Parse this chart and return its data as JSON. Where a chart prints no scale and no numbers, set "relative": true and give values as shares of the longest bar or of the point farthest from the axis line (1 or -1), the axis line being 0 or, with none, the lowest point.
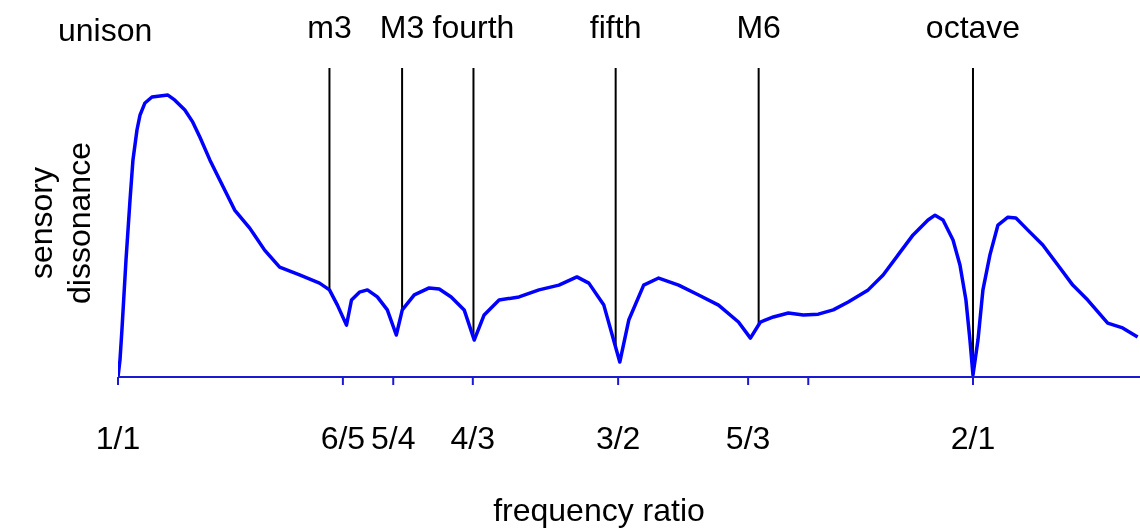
{
  "chart_data": {
    "type": "line",
    "xlabel": "frequency ratio",
    "ylabel": "sensory dissonance",
    "relative": true,
    "log": "x",
    "marker": "none",
    "line_style": "solid",
    "grid": false,
    "legend": false,
    "xlim": [
      1,
      2.29
    ],
    "xticks": [
      {
        "value": 1,
        "label": "1/1"
      },
      {
        "value": 1.2,
        "label": "6/5"
      },
      {
        "value": 1.25,
        "label": "5/4"
      },
      {
        "value": 1.3333,
        "label": "4/3"
      },
      {
        "value": 1.5,
        "label": "3/2"
      },
      {
        "value": 1.6667,
        "label": "5/3"
      },
      {
        "value": 1.75,
        "label": null
      },
      {
        "value": 2,
        "label": "2/1"
      }
    ],
    "annotations": [
      "unison"
    ],
    "ref_lines": [
      {
        "axis": "x",
        "value": 1.187,
        "label": "m3",
        "color": "#000000"
      },
      {
        "axis": "x",
        "value": 1.259,
        "label": "M3",
        "color": "#000000"
      },
      {
        "axis": "x",
        "value": 1.334,
        "label": "fourth",
        "color": "#000000"
      },
      {
        "axis": "x",
        "value": 1.497,
        "label": "fifth",
        "color": "#000000"
      },
      {
        "axis": "x",
        "value": 1.681,
        "label": "M6",
        "color": "#000000"
      },
      {
        "axis": "x",
        "value": 2,
        "label": "octave",
        "color": "#000000"
      }
    ],
    "series": [
      {
        "color": "#0000ff",
        "x": [
          1,
          1.0016,
          1.0032,
          1.0065,
          1.0098,
          1.0122,
          1.0155,
          1.018,
          1.0221,
          1.0279,
          1.0329,
          1.0413,
          1.0472,
          1.0557,
          1.0625,
          1.0686,
          1.0773,
          1.086,
          1.0992,
          1.1127,
          1.1262,
          1.14,
          1.1586,
          1.1775,
          1.187,
          1.1947,
          1.2035,
          1.2084,
          1.2162,
          1.2241,
          1.234,
          1.244,
          1.2531,
          1.2592,
          1.2715,
          1.287,
          1.2975,
          1.3101,
          1.324,
          1.3348,
          1.3456,
          1.362,
          1.3842,
          1.4068,
          1.4297,
          1.4507,
          1.4648,
          1.4827,
          1.502,
          1.513,
          1.5314,
          1.5501,
          1.5754,
          1.6011,
          1.6272,
          1.6537,
          1.6698,
          1.6834,
          1.7012,
          1.722,
          1.743,
          1.7643,
          1.7858,
          1.8076,
          1.8371,
          1.8595,
          1.8822,
          1.9052,
          1.9284,
          1.9394,
          1.952,
          1.9679,
          1.979,
          1.9886,
          1.9951,
          2,
          2.0081,
          2.0162,
          2.0277,
          2.0409,
          2.0575,
          2.0708,
          2.091,
          2.1165,
          2.1424,
          2.1685,
          2.195,
          2.2308,
          2.258,
          2.2856
        ],
        "values": [
          0,
          0.06,
          0.167,
          0.415,
          0.628,
          0.77,
          0.876,
          0.929,
          0.972,
          0.993,
          0.996,
          1,
          0.982,
          0.947,
          0.904,
          0.851,
          0.77,
          0.699,
          0.592,
          0.528,
          0.45,
          0.39,
          0.362,
          0.333,
          0.309,
          0.255,
          0.184,
          0.273,
          0.301,
          0.309,
          0.284,
          0.238,
          0.149,
          0.238,
          0.291,
          0.316,
          0.312,
          0.284,
          0.238,
          0.131,
          0.22,
          0.273,
          0.284,
          0.309,
          0.326,
          0.355,
          0.333,
          0.255,
          0.053,
          0.202,
          0.326,
          0.351,
          0.326,
          0.291,
          0.255,
          0.195,
          0.138,
          0.195,
          0.213,
          0.227,
          0.22,
          0.223,
          0.238,
          0.266,
          0.309,
          0.362,
          0.433,
          0.504,
          0.557,
          0.574,
          0.557,
          0.486,
          0.397,
          0.273,
          0.131,
          0.007,
          0.131,
          0.309,
          0.433,
          0.539,
          0.567,
          0.564,
          0.521,
          0.468,
          0.397,
          0.326,
          0.273,
          0.191,
          0.174,
          0.142
        ]
      }
    ]
  }
}
